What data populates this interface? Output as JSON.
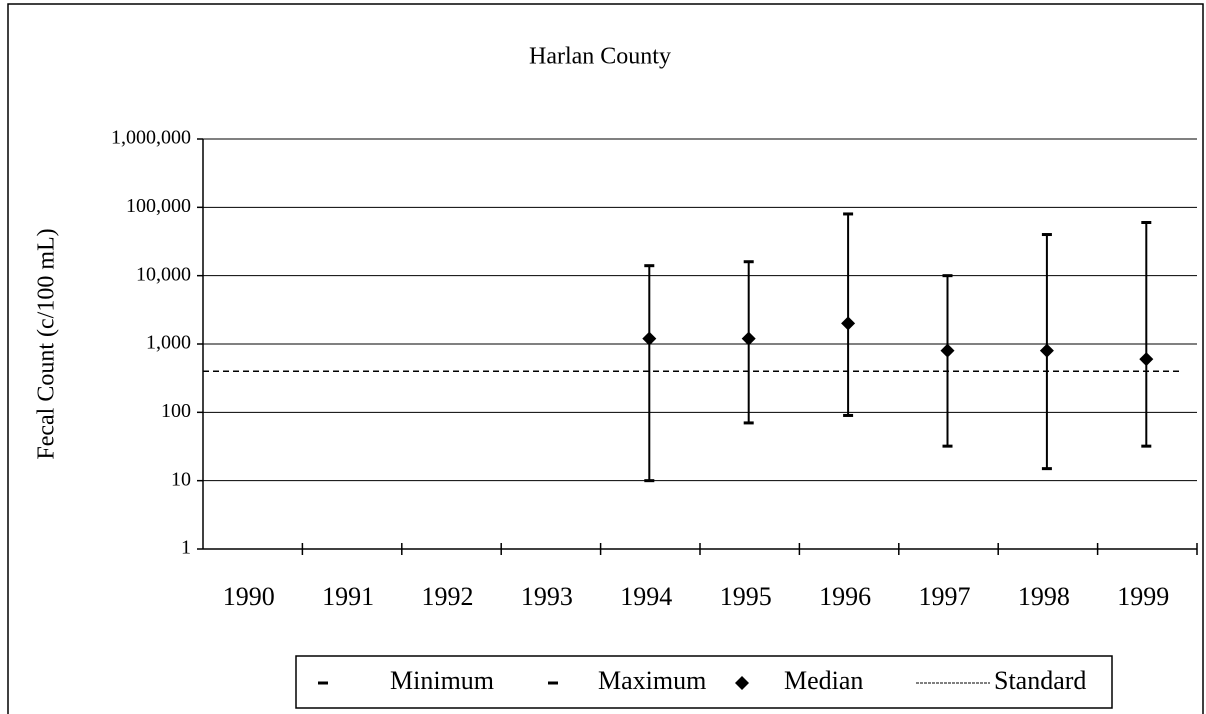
{
  "chart_data": {
    "type": "range",
    "title": "Harlan County",
    "y_label": "Fecal Count (c/100 mL)",
    "log_scale": true,
    "grid": true,
    "legend_position": "bottom",
    "categories": [
      "1990",
      "1991",
      "1992",
      "1993",
      "1994",
      "1995",
      "1996",
      "1997",
      "1998",
      "1999"
    ],
    "series": [
      {
        "name": "Minimum",
        "color": "#000000",
        "values": [
          null,
          null,
          null,
          null,
          10,
          70,
          90,
          32,
          15,
          32
        ]
      },
      {
        "name": "Maximum",
        "color": "#000000",
        "values": [
          null,
          null,
          null,
          null,
          14000,
          16000,
          80000,
          10000,
          40000,
          60000
        ]
      },
      {
        "name": "Median",
        "color": "#000000",
        "values": [
          null,
          null,
          null,
          null,
          1200,
          1200,
          2000,
          800,
          800,
          600
        ]
      }
    ],
    "standard": {
      "name": "Standard",
      "color": "#000000",
      "value": 400
    },
    "ylim": [
      1,
      1000000
    ],
    "yticks": [
      1,
      10,
      100,
      {
        "value": 1000,
        "label": "1,000"
      },
      {
        "value": 10000,
        "label": "10,000"
      },
      {
        "value": 100000,
        "label": "100,000"
      },
      {
        "value": 1000000,
        "label": "1,000,000"
      }
    ]
  }
}
